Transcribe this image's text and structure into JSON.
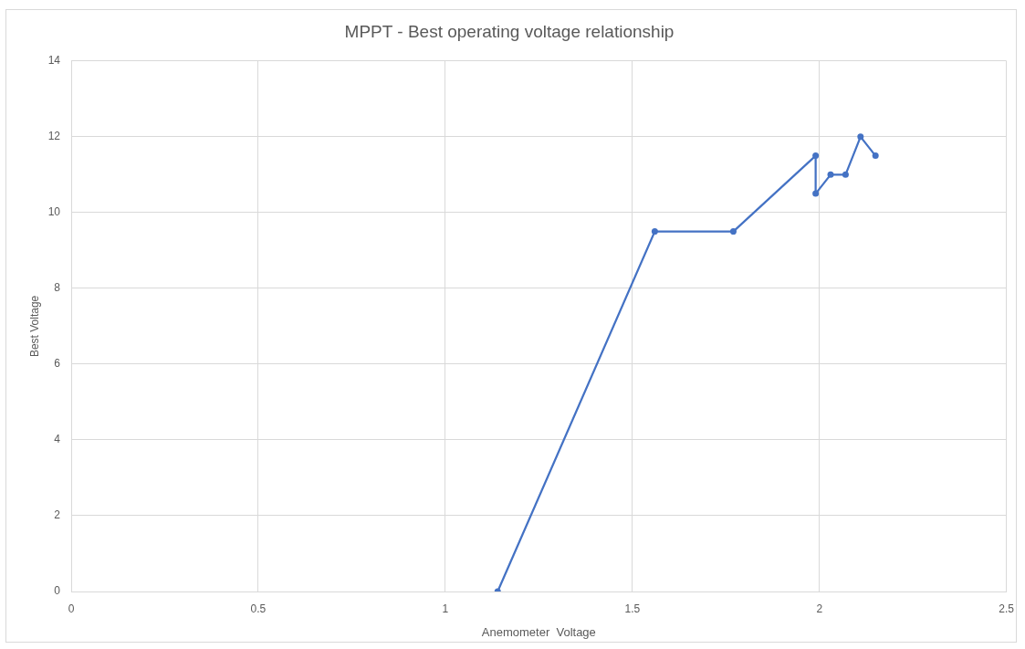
{
  "chart_data": {
    "type": "line",
    "title": "MPPT - Best operating voltage relationship",
    "xlabel": "Anemometer  Voltage",
    "ylabel": "Best Voltage",
    "x": [
      1.14,
      1.56,
      1.77,
      1.99,
      1.99,
      2.03,
      2.07,
      2.11,
      2.15
    ],
    "series": [
      {
        "color": "#4472c4",
        "values": [
          0,
          9.5,
          9.5,
          11.5,
          10.5,
          11,
          11,
          12,
          11.5
        ]
      }
    ],
    "xlim": [
      0,
      2.5
    ],
    "xticks": [
      0,
      0.5,
      1,
      1.5,
      2,
      2.5
    ],
    "ylim": [
      0,
      14
    ],
    "yticks": [
      0,
      2,
      4,
      6,
      8,
      10,
      12,
      14
    ],
    "grid": true,
    "marker": "circle",
    "line_style": "solid"
  }
}
